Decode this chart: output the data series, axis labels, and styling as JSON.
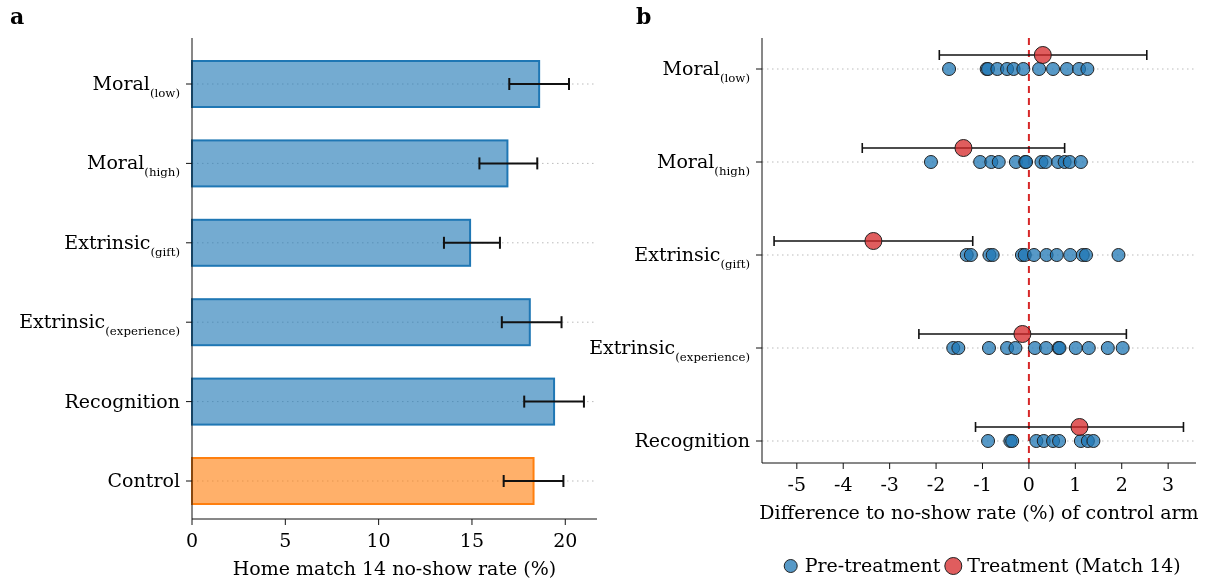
{
  "chart_data": [
    {
      "type": "bar",
      "title": "a",
      "orientation": "horizontal",
      "xlabel": "Home match 14 no-show rate (%)",
      "categories": [
        "Moral$_{(low)}$",
        "Moral$_{(high)}$",
        "Extrinsic$_{(gift)}$",
        "Extrinsic$_{(experience)}$",
        "Recognition",
        "Control"
      ],
      "values": [
        18.6,
        16.9,
        14.9,
        18.1,
        19.4,
        18.3
      ],
      "errors": [
        [
          17.0,
          20.2
        ],
        [
          15.4,
          18.5
        ],
        [
          13.5,
          16.5
        ],
        [
          16.6,
          19.8
        ],
        [
          17.8,
          21.0
        ],
        [
          16.7,
          19.9
        ]
      ],
      "colors": [
        "#1f77b4",
        "#1f77b4",
        "#1f77b4",
        "#1f77b4",
        "#1f77b4",
        "#ff7f0e"
      ],
      "xlim": [
        0,
        21.7
      ],
      "xticks": [
        0,
        5,
        10,
        15,
        20
      ],
      "grid": "y"
    },
    {
      "type": "scatter",
      "title": "b",
      "orientation": "horizontal",
      "xlabel": "Difference to no-show rate (%) of control arm",
      "categories": [
        "Moral$_{(low)}$",
        "Moral$_{(high)}$",
        "Extrinsic$_{(gift)}$",
        "Extrinsic$_{(experience)}$",
        "Recognition"
      ],
      "series": [
        {
          "name": "Pre-treatment",
          "color": "#1f77b4",
          "x": [
            "Moral$_{(low)}$",
            "Moral$_{(low)}$",
            "Moral$_{(low)}$",
            "Moral$_{(low)}$",
            "Moral$_{(low)}$",
            "Moral$_{(low)}$",
            "Moral$_{(low)}$",
            "Moral$_{(low)}$",
            "Moral$_{(low)}$",
            "Moral$_{(low)}$",
            "Moral$_{(low)}$",
            "Moral$_{(low)}$",
            "Moral$_{(high)}$",
            "Moral$_{(high)}$",
            "Moral$_{(high)}$",
            "Moral$_{(high)}$",
            "Moral$_{(high)}$",
            "Moral$_{(high)}$",
            "Moral$_{(high)}$",
            "Moral$_{(high)}$",
            "Moral$_{(high)}$",
            "Moral$_{(high)}$",
            "Moral$_{(high)}$",
            "Moral$_{(high)}$",
            "Moral$_{(high)}$",
            "Extrinsic$_{(gift)}$",
            "Extrinsic$_{(gift)}$",
            "Extrinsic$_{(gift)}$",
            "Extrinsic$_{(gift)}$",
            "Extrinsic$_{(gift)}$",
            "Extrinsic$_{(gift)}$",
            "Extrinsic$_{(gift)}$",
            "Extrinsic$_{(gift)}$",
            "Extrinsic$_{(gift)}$",
            "Extrinsic$_{(gift)}$",
            "Extrinsic$_{(gift)}$",
            "Extrinsic$_{(gift)}$",
            "Extrinsic$_{(gift)}$",
            "Extrinsic$_{(experience)}$",
            "Extrinsic$_{(experience)}$",
            "Extrinsic$_{(experience)}$",
            "Extrinsic$_{(experience)}$",
            "Extrinsic$_{(experience)}$",
            "Extrinsic$_{(experience)}$",
            "Extrinsic$_{(experience)}$",
            "Extrinsic$_{(experience)}$",
            "Extrinsic$_{(experience)}$",
            "Extrinsic$_{(experience)}$",
            "Extrinsic$_{(experience)}$",
            "Extrinsic$_{(experience)}$",
            "Extrinsic$_{(experience)}$",
            "Recognition",
            "Recognition",
            "Recognition",
            "Recognition",
            "Recognition",
            "Recognition",
            "Recognition",
            "Recognition",
            "Recognition",
            "Recognition"
          ],
          "values": [
            -1.72,
            -0.91,
            -0.88,
            -0.68,
            -0.47,
            -0.33,
            -0.12,
            0.22,
            0.52,
            0.82,
            1.08,
            1.26,
            -2.11,
            -1.05,
            -0.81,
            -0.65,
            -0.28,
            -0.08,
            -0.06,
            0.27,
            0.36,
            0.63,
            0.77,
            0.88,
            1.12,
            -1.34,
            -1.25,
            -0.85,
            -0.78,
            -0.15,
            -0.09,
            0.11,
            0.38,
            0.6,
            0.89,
            1.16,
            1.23,
            1.93,
            -1.63,
            -1.52,
            -0.86,
            -0.47,
            -0.29,
            0.13,
            0.37,
            0.64,
            0.66,
            1.01,
            1.29,
            1.7,
            2.02,
            -0.88,
            -0.4,
            -0.36,
            0.16,
            0.32,
            0.52,
            0.65,
            1.12,
            1.27,
            1.39
          ]
        },
        {
          "name": "Treatment (Match 14)",
          "color": "#d62728",
          "x": [
            "Moral$_{(low)}$",
            "Moral$_{(high)}$",
            "Extrinsic$_{(gift)}$",
            "Extrinsic$_{(experience)}$",
            "Recognition"
          ],
          "values": [
            0.3,
            -1.41,
            -3.35,
            -0.14,
            1.09
          ],
          "errors": [
            [
              -1.93,
              2.54
            ],
            [
              -3.59,
              0.77
            ],
            [
              -5.49,
              -1.21
            ],
            [
              -2.37,
              2.1
            ],
            [
              -1.15,
              3.33
            ]
          ]
        }
      ],
      "xlim": [
        -5.75,
        3.6
      ],
      "xticks": [
        -5,
        -4,
        -3,
        -2,
        -1,
        0,
        1,
        2,
        3
      ],
      "grid": "y",
      "marker": "circle",
      "legend": "bottom",
      "ref_lines": [
        {
          "axis": "x",
          "value": 0,
          "color": "#d62728",
          "line_style": "dashed"
        }
      ]
    }
  ]
}
